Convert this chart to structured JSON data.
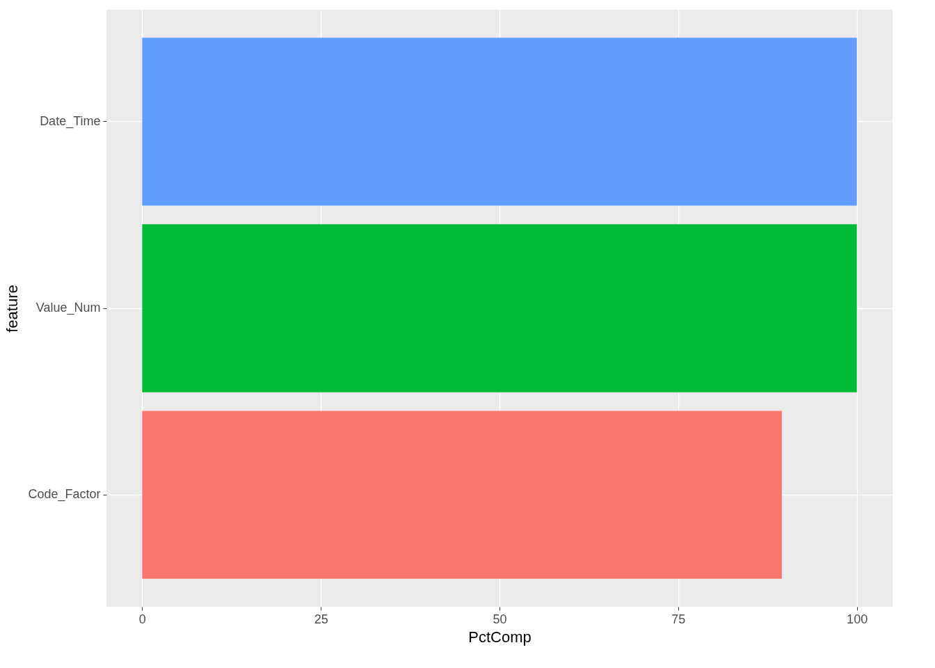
{
  "chart_data": {
    "type": "bar",
    "orientation": "horizontal",
    "xlabel": "PctComp",
    "ylabel": "feature",
    "categories": [
      "Date_Time",
      "Value_Num",
      "Code_Factor"
    ],
    "values": [
      100,
      100,
      89.5
    ],
    "colors": [
      "#619cff",
      "#00ba38",
      "#f8766d"
    ],
    "xlim": [
      -5,
      105
    ],
    "xticks": [
      0,
      25,
      50,
      75,
      100
    ],
    "grid": true
  }
}
